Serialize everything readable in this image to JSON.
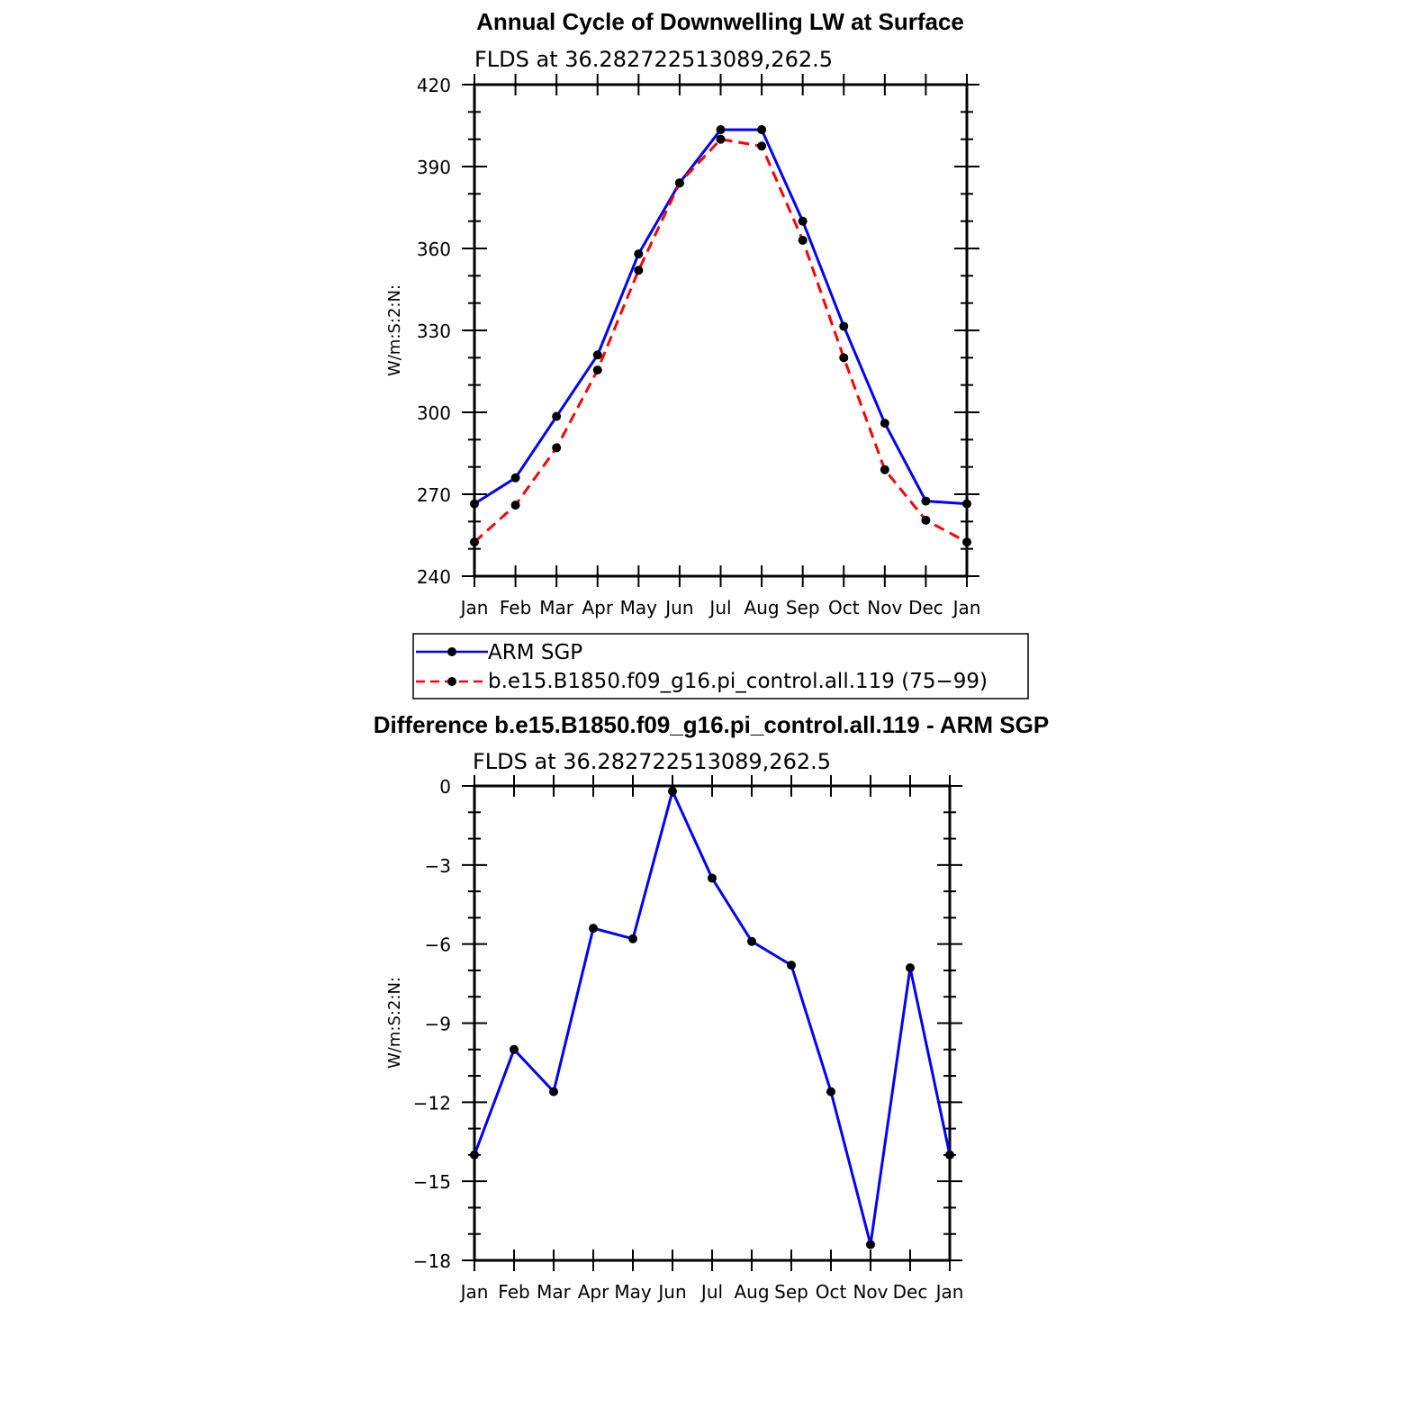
{
  "chart_data": [
    {
      "type": "line",
      "title": "Annual Cycle of Downwelling LW at Surface",
      "subtitle": "FLDS at 36.282722513089,262.5",
      "ylabel": "W/m:S:2:N:",
      "categories": [
        "Jan",
        "Feb",
        "Mar",
        "Apr",
        "May",
        "Jun",
        "Jul",
        "Aug",
        "Sep",
        "Oct",
        "Nov",
        "Dec",
        "Jan"
      ],
      "ylim": [
        240,
        420
      ],
      "yticks": [
        "240",
        "270",
        "300",
        "330",
        "360",
        "390",
        "420"
      ],
      "series": [
        {
          "name": "ARM SGP",
          "color": "#0000ff",
          "dash": "solid",
          "values": [
            266.5,
            276,
            298.5,
            321,
            358,
            384,
            403.5,
            403.5,
            370,
            331.5,
            296,
            267.5,
            266.5
          ]
        },
        {
          "name": "b.e15.B1850.f09_g16.pi_control.all.119 (75−99)",
          "color": "#ff0000",
          "dash": "dashed",
          "values": [
            252.5,
            266,
            287,
            315.5,
            352,
            384,
            400,
            397.5,
            363,
            320,
            279,
            260.5,
            252.5
          ]
        }
      ],
      "legend": "below"
    },
    {
      "type": "line",
      "title": "Difference b.e15.B1850.f09_g16.pi_control.all.119 - ARM SGP",
      "subtitle": "FLDS at 36.282722513089,262.5",
      "ylabel": "W/m:S:2:N:",
      "categories": [
        "Jan",
        "Feb",
        "Mar",
        "Apr",
        "May",
        "Jun",
        "Jul",
        "Aug",
        "Sep",
        "Oct",
        "Nov",
        "Dec",
        "Jan"
      ],
      "ylim": [
        -18,
        0
      ],
      "yticks": [
        "−18",
        "−15",
        "−12",
        "−9",
        "−6",
        "−3",
        "0"
      ],
      "series": [
        {
          "color": "#0000ff",
          "dash": "solid",
          "values": [
            -14,
            -10,
            -11.6,
            -5.4,
            -5.8,
            -0.2,
            -3.5,
            -5.9,
            -6.8,
            -11.6,
            -17.4,
            -6.9,
            -14
          ]
        }
      ]
    }
  ]
}
